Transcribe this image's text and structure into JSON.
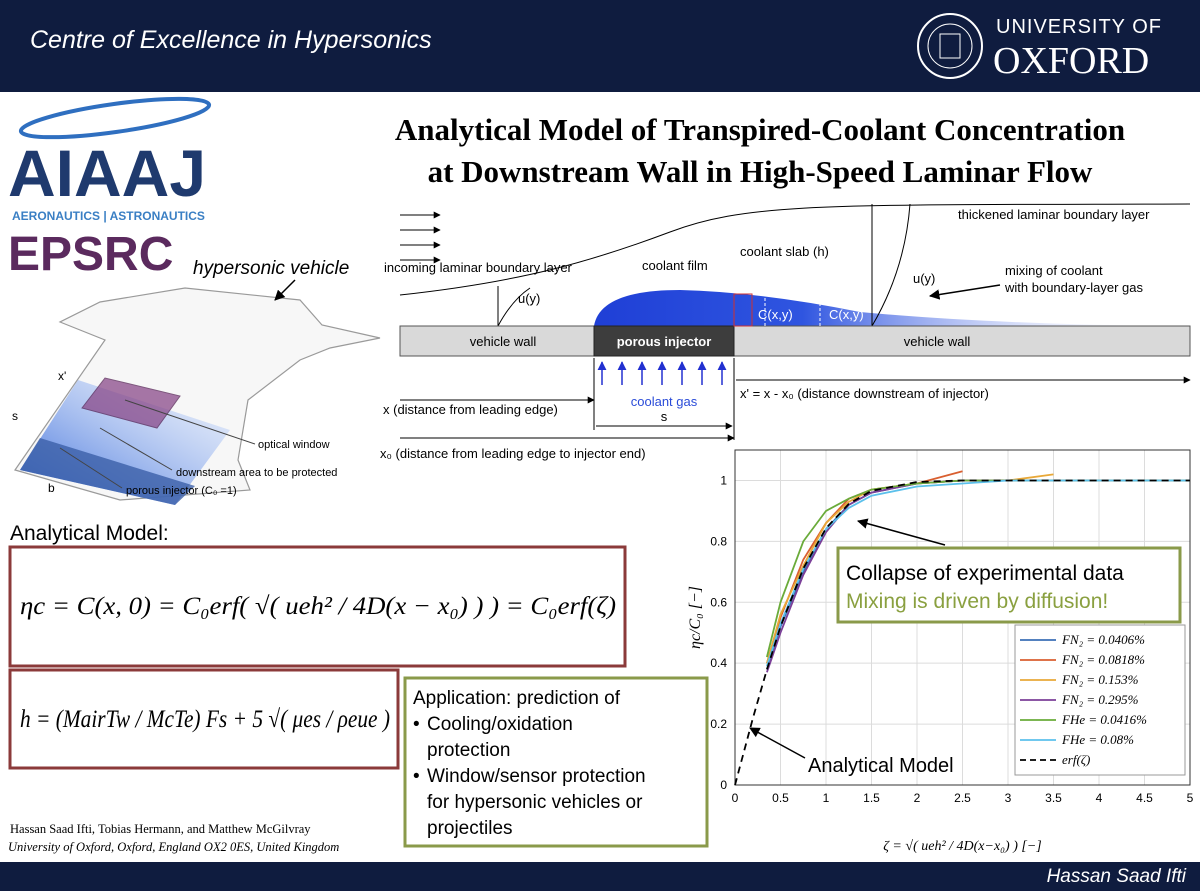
{
  "header": {
    "centre": "Centre of Excellence in Hypersonics",
    "university_line1": "UNIVERSITY OF",
    "university_line2": "OXFORD"
  },
  "logos": {
    "aiaaj": "AIAAJ",
    "aiaaj_tagline": "AERONAUTICS | ASTRONAUTICS",
    "epsrc": "EPSRC"
  },
  "title": {
    "line1": "Analytical Model of Transpired-Coolant Concentration",
    "line2": "at Downstream Wall in High-Speed Laminar Flow"
  },
  "vehicle": {
    "label": "hypersonic vehicle",
    "x_prime": "x'",
    "s": "s",
    "b": "b",
    "optical_window": "optical window",
    "protected_area": "downstream area to be protected",
    "porous_injector": "porous injector (C₀ =1)"
  },
  "flow_diagram": {
    "thickened_layer": "thickened laminar boundary layer",
    "incoming_layer": "incoming laminar boundary layer",
    "coolant_film": "coolant film",
    "coolant_slab": "coolant slab (h)",
    "velocity_profile_upstream": "u(y)",
    "velocity_profile_downstream": "u(y)",
    "mixing_line1": "mixing of coolant",
    "mixing_line2": "with boundary-layer gas",
    "concentration_1": "C(x,y)",
    "concentration_2": "C(x,y)",
    "wall_upstream": "vehicle wall",
    "wall_downstream": "vehicle wall",
    "injector": "porous injector",
    "coolant_gas": "coolant gas",
    "injector_length": "s",
    "x_label": "x (distance from leading edge)",
    "x_prime_label": "x' = x - x₀ (distance downstream of injector)",
    "x0_label": "x₀ (distance from leading edge to injector end)"
  },
  "model": {
    "heading": "Analytical Model:",
    "eq_concentration": "ηc = C(x, 0) = C₀erf( √( ueh² / 4D(x − x₀) ) ) = C₀erf(ζ)",
    "eq_slab": "h = (MairTw / McTe) Fs + 5 √( μes / ρeue )"
  },
  "application": {
    "heading": "Application: prediction of",
    "bullets": [
      [
        "Cooling/oxidation",
        "protection"
      ],
      [
        "Window/sensor protection",
        "for hypersonic vehicles or",
        "projectiles"
      ]
    ]
  },
  "authors": {
    "names": "Hassan Saad Ifti, Tobias Hermann, and Matthew McGilvray",
    "affiliation": "University of Oxford, Oxford, England OX2 0ES, United Kingdom"
  },
  "footer": {
    "presenter": "Hassan Saad Ifti"
  },
  "chart_data": {
    "type": "line",
    "x_label": "ζ = √( ueh² / 4D(x−x₀) ) [−]",
    "y_label": "ηc/C₀ [−]",
    "annotations": [
      "Collapse of experimental data",
      "Mixing is driven by diffusion!",
      "Analytical Model"
    ],
    "x": [
      0,
      0.2,
      0.35,
      0.5,
      0.75,
      1,
      1.25,
      1.5,
      2,
      2.5,
      3,
      3.5,
      4,
      4.5,
      5
    ],
    "series": [
      {
        "name": "FN₂ = 0.0406%",
        "color": "#3b6fb6",
        "values": [
          null,
          null,
          0.38,
          0.52,
          0.7,
          0.84,
          0.92,
          0.96,
          0.99,
          1.0,
          1.0,
          1.0,
          1.0,
          1.0,
          1.0
        ]
      },
      {
        "name": "FN₂ = 0.0818%",
        "color": "#d95f30",
        "values": [
          null,
          null,
          0.4,
          0.55,
          0.74,
          0.86,
          0.94,
          0.97,
          0.99,
          1.03,
          null,
          null,
          null,
          null,
          null
        ]
      },
      {
        "name": "FN₂ = 0.153%",
        "color": "#e8a838",
        "values": [
          null,
          null,
          0.4,
          0.56,
          0.72,
          0.86,
          0.93,
          0.97,
          0.99,
          1.0,
          1.0,
          1.02,
          null,
          null,
          null
        ]
      },
      {
        "name": "FN₂ = 0.295%",
        "color": "#7b3f98",
        "values": [
          null,
          null,
          0.37,
          0.5,
          0.69,
          0.83,
          0.92,
          0.96,
          0.99,
          1.0,
          1.0,
          1.0,
          1.0,
          1.0,
          1.0
        ]
      },
      {
        "name": "FHe = 0.0416%",
        "color": "#6aab3a",
        "values": [
          null,
          null,
          0.42,
          0.6,
          0.8,
          0.9,
          0.94,
          0.97,
          0.99,
          1.0,
          1.0,
          1.0,
          1.0,
          1.0,
          1.0
        ]
      },
      {
        "name": "FHe = 0.08%",
        "color": "#5bc0eb",
        "values": [
          null,
          null,
          0.39,
          0.53,
          0.71,
          0.84,
          0.91,
          0.95,
          0.98,
          0.99,
          1.0,
          1.0,
          1.0,
          1.0,
          1.0
        ]
      },
      {
        "name": "erf(ζ)",
        "color": "#000000",
        "line_style": "dashed",
        "values": [
          0,
          0.223,
          0.379,
          0.52,
          0.711,
          0.843,
          0.923,
          0.966,
          0.995,
          1.0,
          1.0,
          1.0,
          1.0,
          1.0,
          1.0
        ]
      }
    ],
    "xlim": [
      0,
      5
    ],
    "ylim": [
      0,
      1.1
    ],
    "xticks": [
      0,
      0.5,
      1,
      1.5,
      2,
      2.5,
      3,
      3.5,
      4,
      4.5,
      5
    ],
    "yticks": [
      0,
      0.2,
      0.4,
      0.6,
      0.8,
      1
    ],
    "grid": true
  }
}
